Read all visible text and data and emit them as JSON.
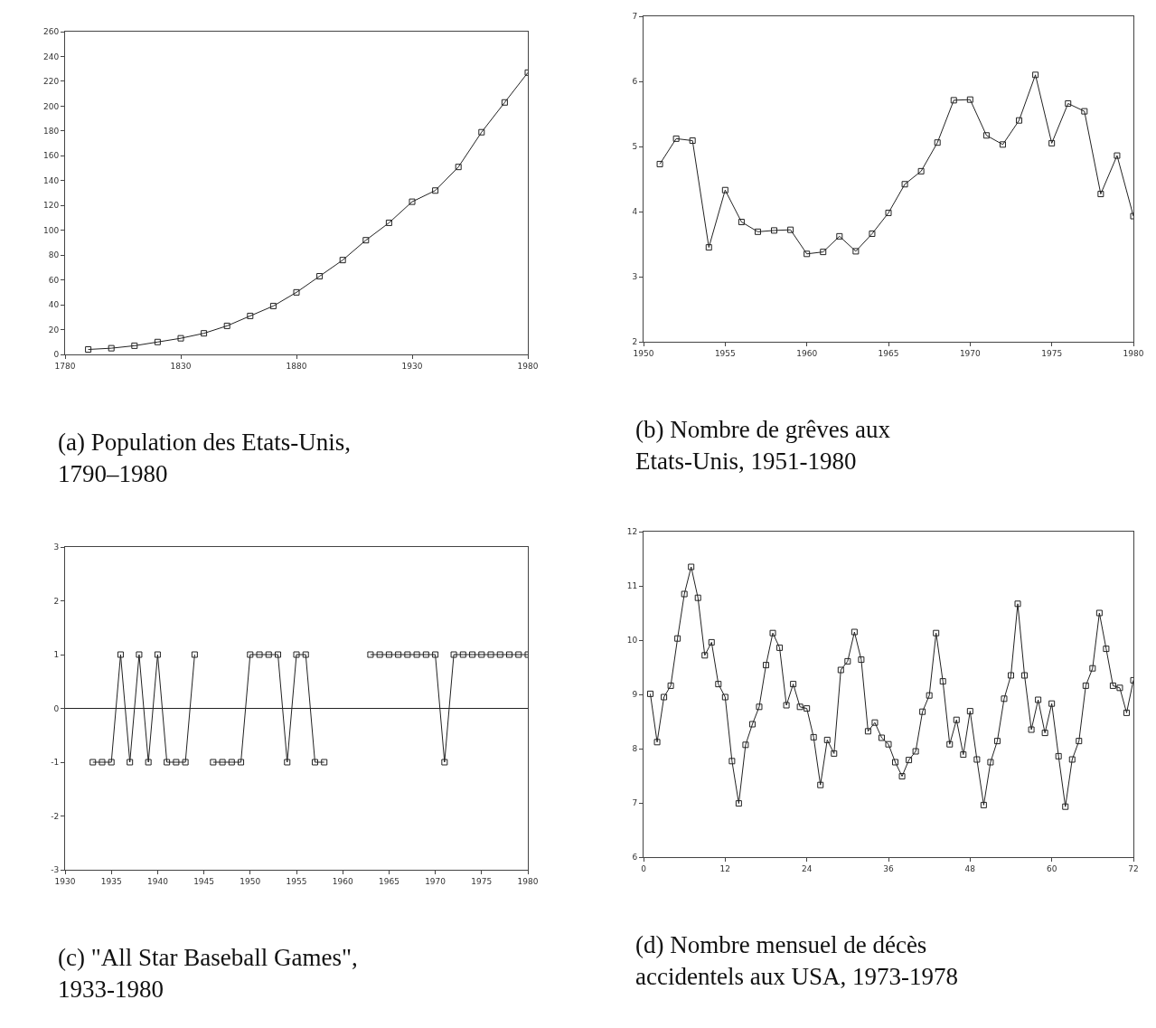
{
  "chart_data": [
    {
      "type": "line",
      "title": "(a) Population des Etats-Unis, 1790–1980",
      "marker": "square",
      "color": "#222222",
      "xlim": [
        1780,
        1980
      ],
      "xticks": [
        1780,
        1830,
        1880,
        1930,
        1980
      ],
      "ylim": [
        0,
        260
      ],
      "yticks": [
        0,
        20,
        40,
        60,
        80,
        100,
        120,
        140,
        160,
        180,
        200,
        220,
        240,
        260
      ],
      "x": [
        1790,
        1800,
        1810,
        1820,
        1830,
        1840,
        1850,
        1860,
        1870,
        1880,
        1890,
        1900,
        1910,
        1920,
        1930,
        1940,
        1950,
        1960,
        1970,
        1980
      ],
      "values": [
        4,
        5,
        7,
        10,
        13,
        17,
        23,
        31,
        39,
        50,
        63,
        76,
        92,
        106,
        123,
        132,
        151,
        179,
        203,
        227
      ]
    },
    {
      "type": "line",
      "title": "(b) Nombre de grêves aux Etats-Unis, 1951-1980",
      "marker": "square",
      "color": "#222222",
      "xlim": [
        1950,
        1980
      ],
      "xticks": [
        1950,
        1955,
        1960,
        1965,
        1970,
        1975,
        1980
      ],
      "ylim": [
        2,
        7
      ],
      "yticks": [
        2,
        3,
        4,
        5,
        6,
        7
      ],
      "x": [
        1951,
        1952,
        1953,
        1954,
        1955,
        1956,
        1957,
        1958,
        1959,
        1960,
        1961,
        1962,
        1963,
        1964,
        1965,
        1966,
        1967,
        1968,
        1969,
        1970,
        1971,
        1972,
        1973,
        1974,
        1975,
        1976,
        1977,
        1978,
        1979,
        1980
      ],
      "values": [
        4.73,
        5.12,
        5.09,
        3.45,
        4.33,
        3.84,
        3.69,
        3.71,
        3.72,
        3.35,
        3.38,
        3.62,
        3.39,
        3.66,
        3.98,
        4.42,
        4.62,
        5.06,
        5.71,
        5.72,
        5.17,
        5.03,
        5.4,
        6.1,
        5.05,
        5.66,
        5.54,
        4.27,
        4.86,
        3.93
      ]
    },
    {
      "type": "line",
      "title": "(c) \"All Star Baseball Games\", 1933-1980",
      "marker": "square",
      "color": "#222222",
      "xlim": [
        1930,
        1980
      ],
      "xticks": [
        1930,
        1935,
        1940,
        1945,
        1950,
        1955,
        1960,
        1965,
        1970,
        1975,
        1980
      ],
      "ylim": [
        -3,
        3
      ],
      "yticks": [
        -3,
        -2,
        -1,
        0,
        1,
        2,
        3
      ],
      "ref_lines": [
        {
          "axis": "y",
          "value": 0,
          "color": "#222222"
        }
      ],
      "x": [
        1933,
        1934,
        1935,
        1936,
        1937,
        1938,
        1939,
        1940,
        1941,
        1942,
        1943,
        1944,
        1945,
        1946,
        1947,
        1948,
        1949,
        1950,
        1951,
        1952,
        1953,
        1954,
        1955,
        1956,
        1957,
        1958,
        1959,
        1960,
        1961,
        1962,
        1963,
        1964,
        1965,
        1966,
        1967,
        1968,
        1969,
        1970,
        1971,
        1972,
        1973,
        1974,
        1975,
        1976,
        1977,
        1978,
        1979,
        1980
      ],
      "values": [
        -1,
        -1,
        -1,
        1,
        -1,
        1,
        -1,
        1,
        -1,
        -1,
        -1,
        1,
        null,
        -1,
        -1,
        -1,
        -1,
        1,
        1,
        1,
        1,
        -1,
        1,
        1,
        -1,
        -1,
        null,
        null,
        null,
        null,
        1,
        1,
        1,
        1,
        1,
        1,
        1,
        1,
        -1,
        1,
        1,
        1,
        1,
        1,
        1,
        1,
        1,
        1
      ]
    },
    {
      "type": "line",
      "title": "(d) Nombre mensuel de décès accidentels aux USA, 1973-1978",
      "marker": "square",
      "color": "#222222",
      "xlim": [
        0,
        72
      ],
      "xticks": [
        0,
        12,
        24,
        36,
        48,
        60,
        72
      ],
      "ylim": [
        6,
        12
      ],
      "yticks": [
        6,
        7,
        8,
        9,
        10,
        11,
        12
      ],
      "x": [
        1,
        2,
        3,
        4,
        5,
        6,
        7,
        8,
        9,
        10,
        11,
        12,
        13,
        14,
        15,
        16,
        17,
        18,
        19,
        20,
        21,
        22,
        23,
        24,
        25,
        26,
        27,
        28,
        29,
        30,
        31,
        32,
        33,
        34,
        35,
        36,
        37,
        38,
        39,
        40,
        41,
        42,
        43,
        44,
        45,
        46,
        47,
        48,
        49,
        50,
        51,
        52,
        53,
        54,
        55,
        56,
        57,
        58,
        59,
        60,
        61,
        62,
        63,
        64,
        65,
        66,
        67,
        68,
        69,
        70,
        71,
        72
      ],
      "values": [
        9.01,
        8.12,
        8.95,
        9.16,
        10.03,
        10.85,
        11.35,
        10.78,
        9.72,
        9.96,
        9.19,
        8.95,
        7.77,
        6.99,
        8.07,
        8.45,
        8.77,
        9.54,
        10.13,
        9.86,
        8.8,
        9.19,
        8.77,
        8.74,
        8.21,
        7.33,
        8.16,
        7.91,
        9.45,
        9.61,
        10.15,
        9.64,
        8.32,
        8.48,
        8.2,
        8.08,
        7.75,
        7.49,
        7.79,
        7.95,
        8.68,
        8.98,
        10.13,
        9.24,
        8.08,
        8.53,
        7.89,
        8.69,
        7.8,
        6.96,
        7.75,
        8.14,
        8.92,
        9.35,
        10.67,
        9.35,
        8.35,
        8.9,
        8.29,
        8.83,
        7.86,
        6.93,
        7.8,
        8.14,
        9.16,
        9.48,
        10.5,
        9.84,
        9.16,
        9.12,
        8.66,
        9.26
      ]
    }
  ]
}
